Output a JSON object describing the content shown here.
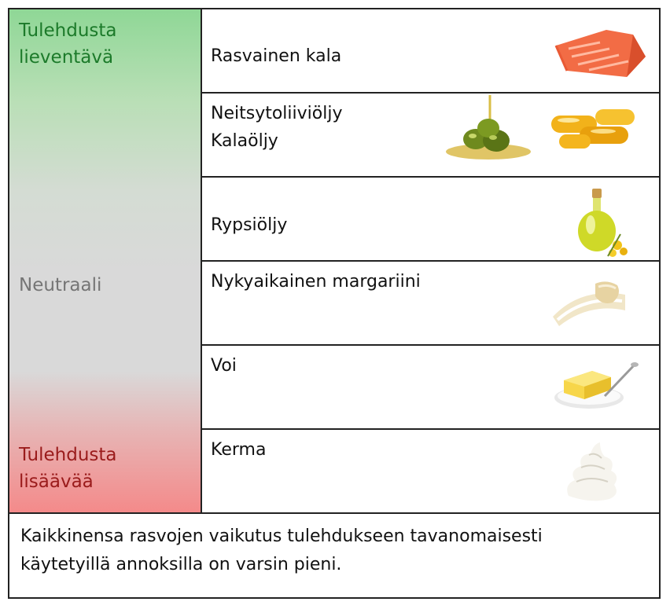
{
  "scale": {
    "top_label": [
      "Tulehdusta",
      "lieventävä"
    ],
    "middle_label": "Neutraali",
    "bottom_label": [
      "Tulehdusta",
      "lisäävää"
    ]
  },
  "rows": [
    {
      "lines": [
        "Rasvainen kala"
      ],
      "icons": [
        "salmon-fillet-icon"
      ]
    },
    {
      "lines": [
        "Neitsytoliiviöljy",
        "Kalaöljy"
      ],
      "icons": [
        "olives-with-oil-icon",
        "fish-oil-capsules-icon"
      ]
    },
    {
      "lines": [
        "Rypsiöljy"
      ],
      "icons": [
        "rapeseed-oil-bottle-icon"
      ]
    },
    {
      "lines": [
        "Nykyaikainen margariini"
      ],
      "icons": [
        "margarine-spread-icon"
      ]
    },
    {
      "lines": [
        "Voi"
      ],
      "icons": [
        "butter-plate-icon"
      ]
    },
    {
      "lines": [
        "Kerma"
      ],
      "icons": [
        "whipped-cream-icon"
      ]
    }
  ],
  "footer": {
    "lines": [
      "Kaikkinensa rasvojen vaikutus tulehdukseen tavanomaisesti",
      "käytetyillä annoksilla on varsin pieni."
    ]
  }
}
